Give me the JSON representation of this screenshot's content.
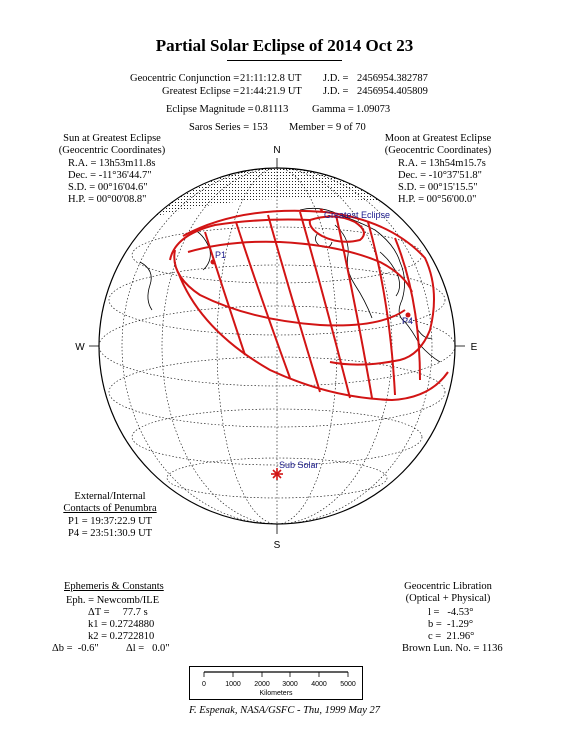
{
  "title": "Partial Solar Eclipse of 2014 Oct 23",
  "header": {
    "conjunction_label": "Geocentric Conjunction = ",
    "conjunction_value": "21:11:12.8 UT",
    "jd1_label": "J.D. = ",
    "jd1_value": "2456954.382787",
    "greatest_label": "Greatest Eclipse = ",
    "greatest_value": "21:44:21.9 UT",
    "jd2_label": "J.D. = ",
    "jd2_value": "2456954.405809",
    "magnitude_label": "Eclipse Magnitude = ",
    "magnitude_value": "0.81113",
    "gamma_label": "Gamma = ",
    "gamma_value": "1.09073",
    "saros_label": "Saros Series = ",
    "saros_value": "153",
    "member_label": "Member = ",
    "member_value": "9 of 70"
  },
  "sun": {
    "heading": "Sun at Greatest Eclipse",
    "subheading": "(Geocentric Coordinates)",
    "ra": "R.A. = 13h53m11.8s",
    "dec": "Dec. = -11°36'44.7\"",
    "sd": "S.D. = 00°16'04.6\"",
    "hp": "H.P. = 00°00'08.8\""
  },
  "moon": {
    "heading": "Moon at Greatest Eclipse",
    "subheading": "(Geocentric Coordinates)",
    "ra": "R.A. = 13h54m15.7s",
    "dec": "Dec. = -10°37'51.8\"",
    "sd": "S.D. = 00°15'15.5\"",
    "hp": "H.P. = 00°56'00.0\""
  },
  "map": {
    "north": "N",
    "south": "S",
    "west": "W",
    "east": "E",
    "p1": "P1",
    "p4": "P4",
    "greatest": "Greatest Eclipse",
    "subsolar": "Sub Solar",
    "ink_color": "#d21414",
    "label_color": "#1a1a8c"
  },
  "contacts": {
    "heading1": "External/Internal",
    "heading2": "Contacts of Penumbra",
    "p1": "P1 = 19:37:22.9 UT",
    "p4": "P4 = 23:51:30.9 UT"
  },
  "ephemeris": {
    "heading": "Ephemeris & Constants",
    "eph": "Eph. = Newcomb/ILE",
    "dt": "ΔT =     77.7 s",
    "k1": "k1 = 0.2724880",
    "k2": "k2 = 0.2722810",
    "db": "Δb =  -0.6\"",
    "dl": "Δl =   0.0\""
  },
  "libration": {
    "heading1": "Geocentric Libration",
    "heading2": "(Optical + Physical)",
    "l": "l =   -4.53°",
    "b": "b =  -1.29°",
    "c": "c =  21.96°",
    "brown": "Brown Lun. No. = 1136"
  },
  "scale": {
    "ticks": [
      "0",
      "1000",
      "2000",
      "3000",
      "4000",
      "5000"
    ],
    "unit": "Kilometers"
  },
  "footer": "F. Espenak, NASA/GSFC - Thu, 1999 May 27"
}
